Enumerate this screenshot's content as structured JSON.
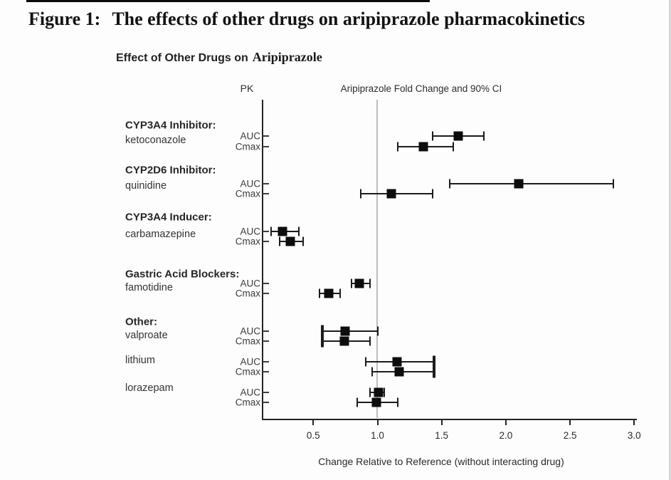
{
  "figure": {
    "label": "Figure 1:",
    "title": "The effects of other drugs on aripiprazole pharmacokinetics"
  },
  "chart_data": {
    "type": "scatter",
    "variant": "forest-plot",
    "title_prefix": "Effect of Other Drugs on",
    "title_word": "Aripiprazole",
    "column_headers": {
      "pk": "PK",
      "estimate": "Aripiprazole Fold Change and 90% CI"
    },
    "xlabel": "Change Relative to Reference (without interacting drug)",
    "x_tick_labels": [
      "0.5",
      "1.0",
      "1.5",
      "2.0",
      "2.5",
      "3.0"
    ],
    "xlim": [
      0.1,
      3.0
    ],
    "reference_line": 1.0,
    "grid": false,
    "groups": [
      {
        "header": "CYP3A4 Inhibitor:",
        "drug": "ketoconazole",
        "rows": [
          {
            "pk": "AUC",
            "value": 1.63,
            "ci_low": 1.43,
            "ci_high": 1.83
          },
          {
            "pk": "Cmax",
            "value": 1.36,
            "ci_low": 1.16,
            "ci_high": 1.59
          }
        ]
      },
      {
        "header": "CYP2D6 Inhibitor:",
        "drug": "quinidine",
        "rows": [
          {
            "pk": "AUC",
            "value": 2.1,
            "ci_low": 1.56,
            "ci_high": 2.84
          },
          {
            "pk": "Cmax",
            "value": 1.11,
            "ci_low": 0.87,
            "ci_high": 1.43
          }
        ]
      },
      {
        "header": "CYP3A4 Inducer:",
        "drug": "carbamazepine",
        "rows": [
          {
            "pk": "AUC",
            "value": 0.26,
            "ci_low": 0.17,
            "ci_high": 0.39
          },
          {
            "pk": "Cmax",
            "value": 0.32,
            "ci_low": 0.24,
            "ci_high": 0.42
          }
        ]
      },
      {
        "header": "Gastric Acid Blockers:",
        "drug": "famotidine",
        "rows": [
          {
            "pk": "AUC",
            "value": 0.86,
            "ci_low": 0.8,
            "ci_high": 0.94
          },
          {
            "pk": "Cmax",
            "value": 0.62,
            "ci_low": 0.55,
            "ci_high": 0.71
          }
        ]
      },
      {
        "header": "Other:",
        "drug": "valproate",
        "rows": [
          {
            "pk": "AUC",
            "value": 0.75,
            "ci_low": 0.57,
            "ci_high": 1.0
          },
          {
            "pk": "Cmax",
            "value": 0.74,
            "ci_low": 0.57,
            "ci_high": 0.94
          }
        ]
      },
      {
        "header": "",
        "drug": "lithium",
        "rows": [
          {
            "pk": "AUC",
            "value": 1.15,
            "ci_low": 0.91,
            "ci_high": 1.44
          },
          {
            "pk": "Cmax",
            "value": 1.17,
            "ci_low": 0.96,
            "ci_high": 1.44
          }
        ]
      },
      {
        "header": "",
        "drug": "lorazepam",
        "rows": [
          {
            "pk": "AUC",
            "value": 1.01,
            "ci_low": 0.94,
            "ci_high": 1.05
          },
          {
            "pk": "Cmax",
            "value": 0.99,
            "ci_low": 0.84,
            "ci_high": 1.16
          }
        ]
      }
    ]
  }
}
